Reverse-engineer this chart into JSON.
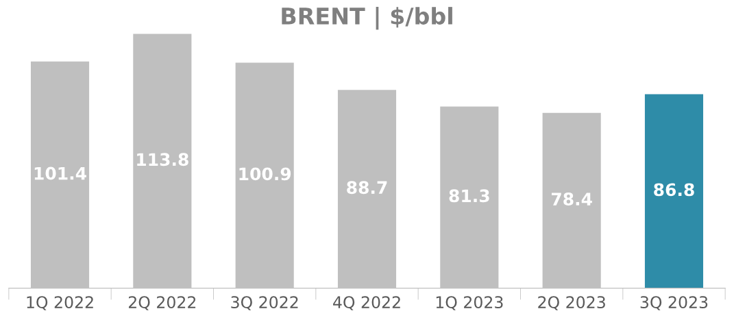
{
  "chart_data": {
    "type": "bar",
    "title": "BRENT | $/bbl",
    "categories": [
      "1Q 2022",
      "2Q 2022",
      "3Q 2022",
      "4Q 2022",
      "1Q 2023",
      "2Q 2023",
      "3Q 2023"
    ],
    "values": [
      101.4,
      113.8,
      100.9,
      88.7,
      81.3,
      78.4,
      86.8
    ],
    "colors": [
      "#bfbfbf",
      "#bfbfbf",
      "#bfbfbf",
      "#bfbfbf",
      "#bfbfbf",
      "#bfbfbf",
      "#2e8ca8"
    ],
    "data_labels": true,
    "tick_labels": "x",
    "grid": false
  }
}
